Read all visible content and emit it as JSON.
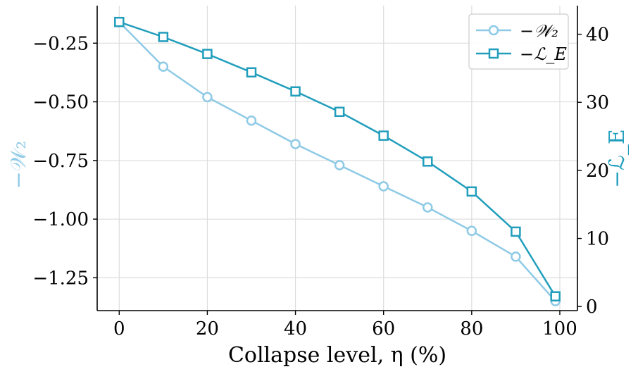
{
  "chart_data": {
    "type": "line",
    "x": [
      0,
      10,
      20,
      30,
      40,
      50,
      60,
      70,
      80,
      90,
      99
    ],
    "xlabel": "Collapse level, η (%)",
    "xlim": [
      -5,
      104
    ],
    "x_ticks": [
      0,
      20,
      40,
      60,
      80,
      100
    ],
    "grid": true,
    "legend_position": "top-right",
    "series": [
      {
        "name": "−𝒲₂",
        "axis": "left",
        "marker": "circle",
        "color": "#8ecae6",
        "values": [
          -0.16,
          -0.35,
          -0.48,
          -0.58,
          -0.68,
          -0.77,
          -0.86,
          -0.95,
          -1.05,
          -1.16,
          -1.35
        ]
      },
      {
        "name": "−ℒ_E",
        "axis": "right",
        "marker": "square",
        "color": "#219ebc",
        "values": [
          41.8,
          39.6,
          37.1,
          34.4,
          31.6,
          28.6,
          25.1,
          21.3,
          16.9,
          11.0,
          1.5
        ]
      }
    ],
    "left_axis": {
      "label": "−𝒲₂",
      "color": "#8ecae6",
      "ylim": [
        -1.39,
        -0.09
      ],
      "ticks": [
        -0.25,
        -0.5,
        -0.75,
        -1.0,
        -1.25
      ],
      "tick_labels": [
        "−0.25",
        "−0.50",
        "−0.75",
        "−1.00",
        "−1.25"
      ]
    },
    "right_axis": {
      "label": "−ℒ_E",
      "color": "#219ebc",
      "ylim": [
        -0.6,
        44.2
      ],
      "ticks": [
        0,
        10,
        20,
        30,
        40
      ],
      "tick_labels": [
        "0",
        "10",
        "20",
        "30",
        "40"
      ]
    }
  }
}
